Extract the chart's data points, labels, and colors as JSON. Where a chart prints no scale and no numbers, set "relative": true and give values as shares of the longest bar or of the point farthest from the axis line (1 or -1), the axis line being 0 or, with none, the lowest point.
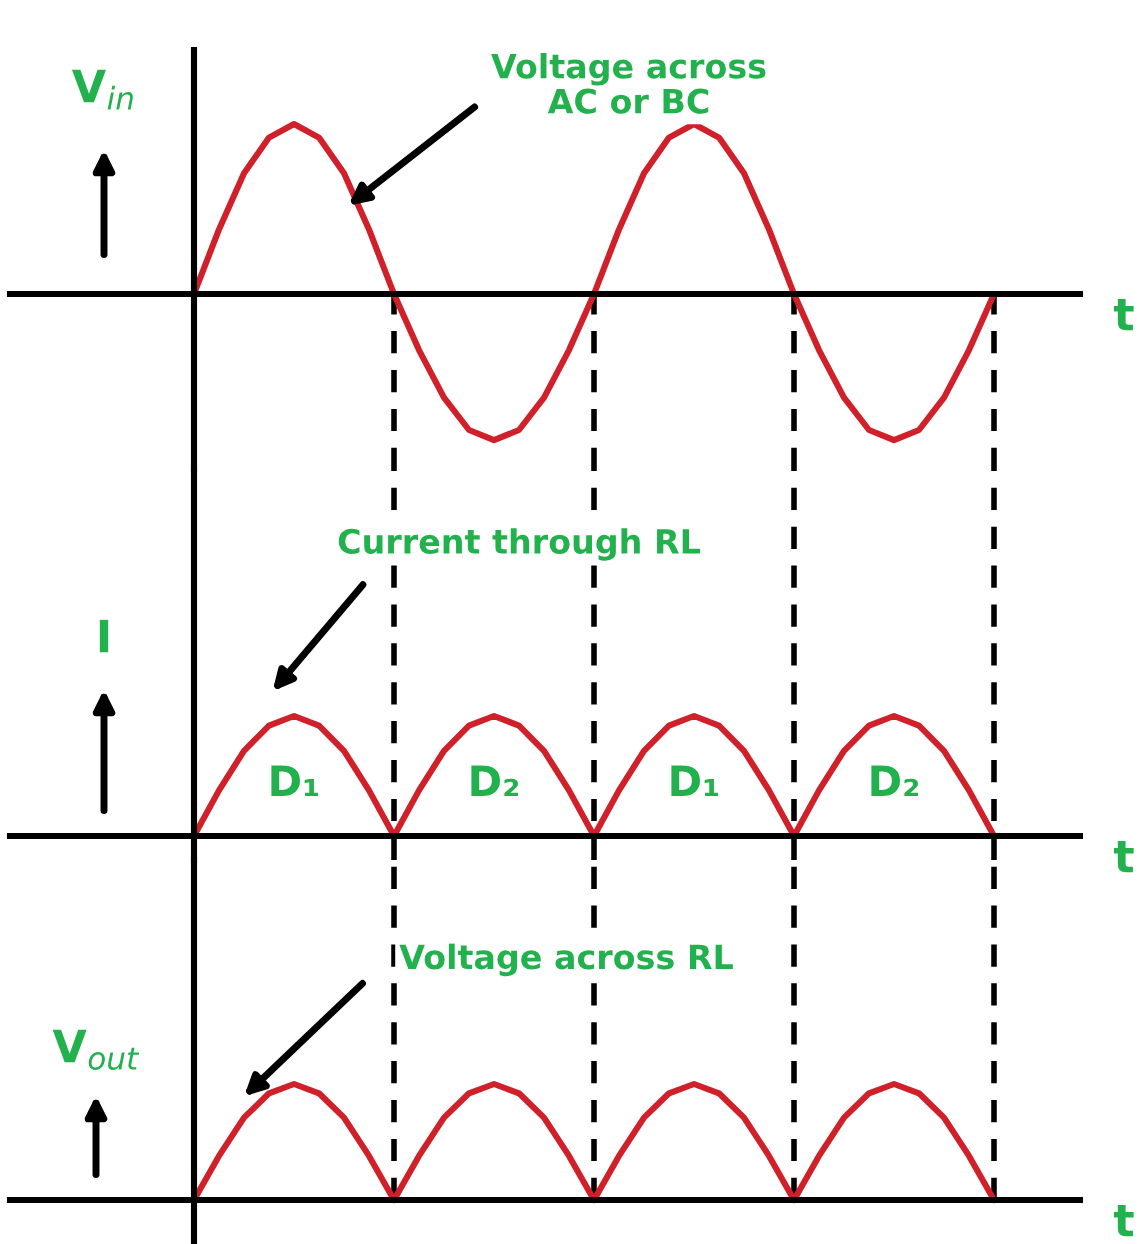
{
  "chart_data": [
    {
      "type": "line",
      "relative": true,
      "ylabel": "V$_{in}$",
      "xlabel": "t",
      "categories": [
        null,
        null,
        null,
        null,
        null,
        null,
        null,
        null,
        null,
        null,
        null,
        null,
        null,
        null,
        null,
        null,
        null,
        null,
        null,
        null,
        null,
        null,
        null,
        null,
        null,
        null,
        null,
        null,
        null,
        null,
        null,
        null,
        null
      ],
      "series": [
        {
          "color": "#d0202a",
          "values": [
            0,
            0.38,
            0.71,
            0.92,
            1,
            0.92,
            0.71,
            0.38,
            0,
            -0.33,
            -0.61,
            -0.8,
            -0.86,
            -0.8,
            -0.61,
            -0.33,
            0,
            0.38,
            0.71,
            0.92,
            1,
            0.92,
            0.71,
            0.38,
            0,
            -0.33,
            -0.61,
            -0.8,
            -0.86,
            -0.8,
            -0.61,
            -0.33,
            0
          ]
        }
      ],
      "annotations": [
        "Voltage across\nAC or BC"
      ],
      "grid": "x"
    },
    {
      "type": "line",
      "relative": true,
      "ylabel": "I",
      "xlabel": "t",
      "categories": [
        null,
        null,
        null,
        null,
        null,
        null,
        null,
        null,
        null,
        null,
        null,
        null,
        null,
        null,
        null,
        null,
        null,
        null,
        null,
        null,
        null,
        null,
        null,
        null,
        null,
        null,
        null,
        null,
        null,
        null,
        null,
        null,
        null
      ],
      "series": [
        {
          "color": "#d0202a",
          "values": [
            0,
            0.38,
            0.71,
            0.92,
            1,
            0.92,
            0.71,
            0.38,
            0,
            0.38,
            0.71,
            0.92,
            1,
            0.92,
            0.71,
            0.38,
            0,
            0.38,
            0.71,
            0.92,
            1,
            0.92,
            0.71,
            0.38,
            0,
            0.38,
            0.71,
            0.92,
            1,
            0.92,
            0.71,
            0.38,
            0
          ]
        }
      ],
      "annotations": [
        "Current through RL",
        "D₁",
        "D₂",
        "D₁",
        "D₂"
      ],
      "grid": "x"
    },
    {
      "type": "line",
      "relative": true,
      "ylabel": "V$_{out}$",
      "xlabel": "t",
      "categories": [
        null,
        null,
        null,
        null,
        null,
        null,
        null,
        null,
        null,
        null,
        null,
        null,
        null,
        null,
        null,
        null,
        null,
        null,
        null,
        null,
        null,
        null,
        null,
        null,
        null,
        null,
        null,
        null,
        null,
        null,
        null,
        null,
        null
      ],
      "series": [
        {
          "color": "#d0202a",
          "values": [
            0,
            0.38,
            0.71,
            0.92,
            1,
            0.92,
            0.71,
            0.38,
            0,
            0.38,
            0.71,
            0.92,
            1,
            0.92,
            0.71,
            0.38,
            0,
            0.38,
            0.71,
            0.92,
            1,
            0.92,
            0.71,
            0.38,
            0,
            0.38,
            0.71,
            0.92,
            1,
            0.92,
            0.71,
            0.38,
            0
          ]
        }
      ],
      "annotations": [
        "Voltage across RL"
      ],
      "grid": "x"
    }
  ]
}
